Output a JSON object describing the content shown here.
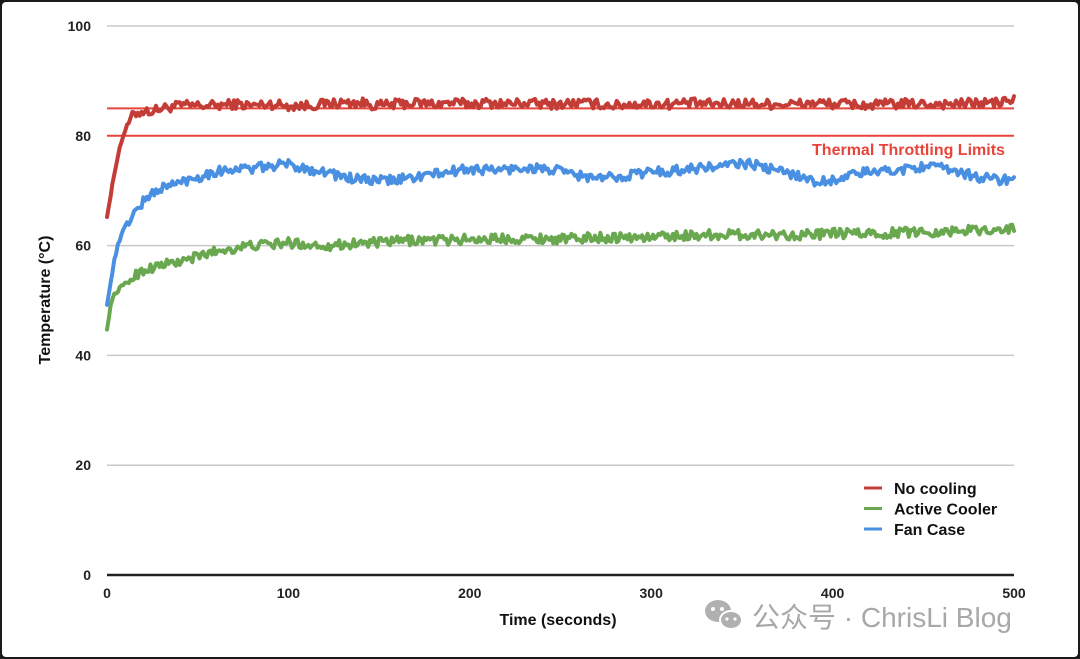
{
  "chart_data": {
    "type": "line",
    "xlabel": "Time (seconds)",
    "ylabel": "Temperature (°C)",
    "xlim": [
      0,
      500
    ],
    "ylim": [
      0,
      100
    ],
    "xticks": [
      0,
      100,
      200,
      300,
      400,
      500
    ],
    "yticks": [
      0,
      20,
      40,
      60,
      80,
      100
    ],
    "grid": "horizontal",
    "legend": "bottom-right",
    "series": [
      {
        "name": "No cooling",
        "color": "#c43c36",
        "x": [
          0,
          2,
          4,
          6,
          8,
          10,
          12,
          15,
          20,
          25,
          30,
          40,
          50,
          60,
          70,
          80,
          90,
          100,
          110,
          120,
          130,
          140,
          150,
          160,
          170,
          180,
          190,
          200,
          210,
          220,
          230,
          240,
          250,
          260,
          270,
          280,
          290,
          300,
          310,
          320,
          330,
          340,
          350,
          360,
          370,
          380,
          390,
          400,
          410,
          420,
          430,
          440,
          450,
          460,
          470,
          480,
          490,
          500
        ],
        "values": [
          65.5,
          69,
          73,
          76.5,
          79,
          81,
          82.5,
          84,
          84.5,
          84.5,
          85,
          85.5,
          85.5,
          85.5,
          85.8,
          85.5,
          85.8,
          85.5,
          85.5,
          85.8,
          86,
          86,
          85.5,
          85.8,
          86,
          85.8,
          86,
          85.8,
          86,
          85.8,
          86,
          85.8,
          85.8,
          86,
          85.8,
          85.5,
          85.8,
          85.8,
          85.8,
          86,
          85.8,
          85.8,
          86,
          85.8,
          85.8,
          85.8,
          86,
          85.8,
          85.8,
          85.5,
          85.8,
          85.8,
          85.8,
          85.8,
          85.8,
          86,
          86,
          86.5
        ]
      },
      {
        "name": "Active Cooler",
        "color": "#6aa84f",
        "x": [
          0,
          1,
          2,
          3,
          5,
          8,
          10,
          15,
          20,
          30,
          40,
          50,
          60,
          70,
          80,
          90,
          100,
          110,
          120,
          130,
          140,
          150,
          160,
          170,
          180,
          190,
          200,
          210,
          220,
          230,
          240,
          250,
          260,
          270,
          280,
          290,
          300,
          310,
          320,
          330,
          340,
          350,
          360,
          370,
          380,
          390,
          400,
          410,
          420,
          430,
          440,
          450,
          460,
          470,
          480,
          490,
          500
        ],
        "values": [
          45,
          46.5,
          49,
          50.5,
          51.5,
          52.5,
          53,
          54.5,
          55.5,
          56.5,
          57,
          58,
          59,
          59.5,
          60,
          60.2,
          60.5,
          60.2,
          60,
          60.2,
          60.5,
          60.5,
          60.8,
          61,
          61,
          61,
          61.2,
          61.2,
          61.3,
          61.3,
          61.3,
          61.2,
          61.3,
          61.5,
          61.5,
          61.5,
          61.5,
          61.8,
          61.8,
          62,
          62,
          62,
          62,
          62,
          62,
          62,
          62.2,
          62.2,
          62.2,
          62.2,
          62.5,
          62.5,
          62.5,
          62.8,
          62.8,
          63,
          63
        ]
      },
      {
        "name": "Fan Case",
        "color": "#4a90e2",
        "x": [
          0,
          2,
          4,
          6,
          8,
          10,
          15,
          20,
          25,
          30,
          40,
          50,
          60,
          70,
          80,
          90,
          100,
          110,
          120,
          130,
          140,
          150,
          160,
          170,
          180,
          190,
          200,
          210,
          220,
          230,
          240,
          250,
          260,
          270,
          280,
          290,
          300,
          310,
          320,
          330,
          340,
          350,
          360,
          370,
          380,
          390,
          400,
          410,
          420,
          430,
          440,
          450,
          460,
          470,
          480,
          490,
          500
        ],
        "values": [
          49.5,
          53,
          57.5,
          60,
          62,
          63.5,
          66,
          68,
          69.5,
          70.5,
          71.5,
          72.5,
          73.5,
          74,
          74,
          74.5,
          74.8,
          74,
          73.5,
          72.5,
          72,
          71.8,
          72,
          72.5,
          73,
          73.5,
          74,
          73.8,
          73.8,
          74.2,
          74,
          73.5,
          72.8,
          72.2,
          72.5,
          73,
          73.5,
          73.5,
          74,
          74.2,
          74.5,
          75,
          74.5,
          73.5,
          73,
          71.5,
          72,
          72.8,
          73.5,
          73.5,
          74,
          74.5,
          74,
          73.5,
          72.5,
          72,
          72
        ]
      }
    ],
    "reference_lines": [
      {
        "y": 85,
        "color": "#e8443a"
      },
      {
        "y": 80,
        "color": "#e8443a"
      }
    ],
    "annotation": {
      "text": "Thermal Throttling Limits",
      "x": 495,
      "y": 76.5,
      "color": "#e8443a"
    }
  },
  "watermark": {
    "icon": "wechat-icon",
    "text": "公众号 · ChrisLi Blog"
  }
}
